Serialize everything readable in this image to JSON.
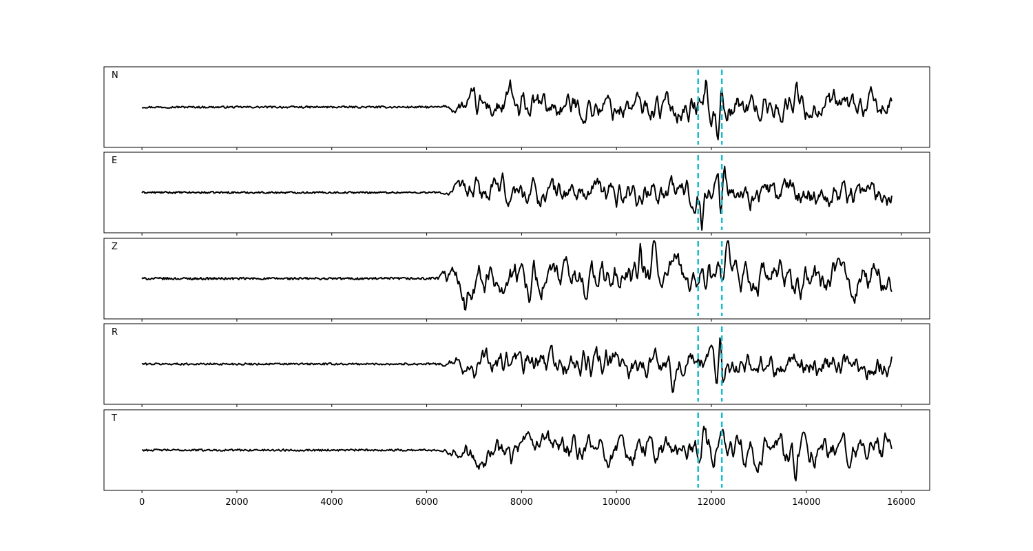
{
  "chart_data": {
    "type": "line",
    "title": "",
    "xlabel": "",
    "ylabel": "",
    "xlim": [
      -800,
      16600
    ],
    "x_ticks": [
      0,
      2000,
      4000,
      6000,
      8000,
      10000,
      12000,
      14000,
      16000
    ],
    "x_tick_labels": [
      "0",
      "2000",
      "4000",
      "6000",
      "8000",
      "10000",
      "12000",
      "14000",
      "16000"
    ],
    "n_samples": 15800,
    "pick_lines": [
      11720,
      12220
    ],
    "pick_color": "#17becf",
    "trace_color": "#000000",
    "grid": false,
    "legend": false,
    "panels": [
      {
        "label": "N",
        "ylim": [
          -1,
          1
        ],
        "quiet_amp": 0.04,
        "loud_amp": 0.38,
        "onset": 6300,
        "spikes": [
          [
            7770,
            0.45
          ],
          [
            7950,
            -0.4
          ],
          [
            11900,
            0.72
          ],
          [
            11980,
            -0.62
          ],
          [
            12130,
            -0.75
          ],
          [
            12200,
            0.6
          ],
          [
            13780,
            0.82
          ]
        ]
      },
      {
        "label": "E",
        "ylim": [
          -1,
          1
        ],
        "quiet_amp": 0.04,
        "loud_amp": 0.38,
        "onset": 6300,
        "spikes": [
          [
            10800,
            0.48
          ],
          [
            11800,
            -0.7
          ],
          [
            12130,
            0.9
          ],
          [
            12190,
            -0.75
          ],
          [
            12280,
            0.5
          ]
        ]
      },
      {
        "label": "Z",
        "ylim": [
          -1,
          1
        ],
        "quiet_amp": 0.05,
        "loud_amp": 0.45,
        "onset": 6100,
        "spikes": [
          [
            6820,
            -0.72
          ],
          [
            10500,
            0.7
          ],
          [
            10800,
            0.9
          ],
          [
            11280,
            0.6
          ],
          [
            12340,
            0.6
          ],
          [
            13880,
            -0.55
          ]
        ]
      },
      {
        "label": "R",
        "ylim": [
          -1,
          1
        ],
        "quiet_amp": 0.04,
        "loud_amp": 0.38,
        "onset": 6300,
        "spikes": [
          [
            11200,
            -0.35
          ],
          [
            12120,
            -0.8
          ],
          [
            12180,
            0.8
          ],
          [
            12240,
            -0.55
          ]
        ]
      },
      {
        "label": "T",
        "ylim": [
          -1,
          1
        ],
        "quiet_amp": 0.04,
        "loud_amp": 0.38,
        "onset": 6300,
        "spikes": [
          [
            7700,
            0.5
          ],
          [
            11860,
            0.6
          ],
          [
            12060,
            -0.6
          ],
          [
            12220,
            0.78
          ],
          [
            13760,
            -0.85
          ]
        ]
      }
    ]
  }
}
